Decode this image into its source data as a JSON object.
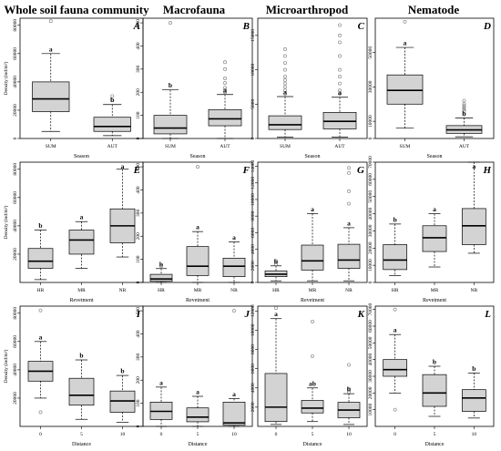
{
  "column_titles": [
    "Whole soil fauna community",
    "Macrofauna",
    "Microarthropod",
    "Nematode"
  ],
  "chart_data": [
    {
      "type": "box",
      "panel": "A",
      "xlabel": "Season",
      "ylabel": "Density (ind/m²)",
      "categories": [
        "SUM",
        "AUT"
      ],
      "ylim": [
        0,
        85000
      ],
      "yticks": [
        0,
        20000,
        40000,
        60000,
        80000
      ],
      "boxes": [
        {
          "whislo": 5000,
          "q1": 19000,
          "med": 28000,
          "q3": 40000,
          "whishi": 60000,
          "outliers": [
            83000
          ],
          "letter": "a"
        },
        {
          "whislo": 2000,
          "q1": 5000,
          "med": 8500,
          "q3": 15000,
          "whishi": 24000,
          "outliers": [
            27000,
            30000
          ],
          "letter": "b"
        }
      ]
    },
    {
      "type": "box",
      "panel": "B",
      "xlabel": "Season",
      "ylabel": "",
      "categories": [
        "SUM",
        "AUT"
      ],
      "ylim": [
        0,
        520
      ],
      "yticks": [
        0,
        100,
        200,
        300,
        400,
        500
      ],
      "boxes": [
        {
          "whislo": 0,
          "q1": 20,
          "med": 45,
          "q3": 100,
          "whishi": 210,
          "outliers": [
            500
          ],
          "letter": "b"
        },
        {
          "whislo": 0,
          "q1": 55,
          "med": 85,
          "q3": 125,
          "whishi": 190,
          "outliers": [
            200,
            210,
            220,
            240,
            260,
            300,
            330
          ],
          "letter": "a"
        }
      ]
    },
    {
      "type": "box",
      "panel": "C",
      "xlabel": "Season",
      "ylabel": "",
      "categories": [
        "SUM",
        "AUT"
      ],
      "ylim": [
        0,
        17500
      ],
      "yticks": [
        0,
        5000,
        10000,
        15000
      ],
      "boxes": [
        {
          "whislo": 200,
          "q1": 1300,
          "med": 2000,
          "q3": 3300,
          "whishi": 6100,
          "outliers": [
            6500,
            7000,
            7500,
            8000,
            8500,
            9000,
            10000,
            11000,
            12000,
            13000
          ],
          "letter": "a"
        },
        {
          "whislo": 200,
          "q1": 1400,
          "med": 2500,
          "q3": 3800,
          "whishi": 6000,
          "outliers": [
            6500,
            7000,
            8000,
            9000,
            10000,
            12000,
            14000,
            15000,
            16500
          ],
          "letter": "a"
        }
      ]
    },
    {
      "type": "box",
      "panel": "D",
      "xlabel": "Season",
      "ylabel": "",
      "categories": [
        "SUM",
        "AUT"
      ],
      "ylim": [
        0,
        70000
      ],
      "yticks": [
        0,
        10000,
        30000,
        50000
      ],
      "boxes": [
        {
          "whislo": 6000,
          "q1": 20000,
          "med": 28000,
          "q3": 37000,
          "whishi": 53000,
          "outliers": [
            68000
          ],
          "letter": "a"
        },
        {
          "whislo": 1000,
          "q1": 3000,
          "med": 5000,
          "q3": 7500,
          "whishi": 12000,
          "outliers": [
            14000,
            16000,
            17000,
            18000,
            19000,
            20000,
            22000
          ],
          "letter": "b"
        }
      ]
    },
    {
      "type": "box",
      "panel": "E",
      "xlabel": "Revetment",
      "ylabel": "Density (ind/m²)",
      "categories": [
        "HR",
        "MR",
        "NR"
      ],
      "ylim": [
        0,
        85000
      ],
      "yticks": [
        20000,
        40000,
        60000,
        80000
      ],
      "boxes": [
        {
          "whislo": 2000,
          "q1": 10000,
          "med": 15000,
          "q3": 24000,
          "whishi": 37000,
          "outliers": [],
          "letter": "b"
        },
        {
          "whislo": 10000,
          "q1": 20000,
          "med": 30000,
          "q3": 37000,
          "whishi": 43000,
          "outliers": [],
          "letter": "a"
        },
        {
          "whislo": 18000,
          "q1": 28000,
          "med": 40000,
          "q3": 52000,
          "whishi": 80000,
          "outliers": [],
          "letter": "a"
        }
      ]
    },
    {
      "type": "box",
      "panel": "F",
      "xlabel": "Revetment",
      "ylabel": "",
      "categories": [
        "HR",
        "MR",
        "NR"
      ],
      "ylim": [
        0,
        520
      ],
      "yticks": [
        0,
        100,
        200,
        300,
        400,
        500
      ],
      "boxes": [
        {
          "whislo": 0,
          "q1": 5,
          "med": 15,
          "q3": 35,
          "whishi": 60,
          "outliers": [
            70
          ],
          "letter": "b"
        },
        {
          "whislo": 0,
          "q1": 30,
          "med": 70,
          "q3": 155,
          "whishi": 220,
          "outliers": [
            500
          ],
          "letter": "a"
        },
        {
          "whislo": 0,
          "q1": 25,
          "med": 70,
          "q3": 105,
          "whishi": 175,
          "outliers": [],
          "letter": "a"
        }
      ]
    },
    {
      "type": "box",
      "panel": "G",
      "xlabel": "Revetment",
      "ylabel": "",
      "categories": [
        "HR",
        "MR",
        "NR"
      ],
      "ylim": [
        0,
        14500
      ],
      "yticks": [
        0,
        2000,
        4000,
        6000,
        8000,
        10000,
        12000,
        14000
      ],
      "boxes": [
        {
          "whislo": 200,
          "q1": 700,
          "med": 1000,
          "q3": 1400,
          "whishi": 2000,
          "outliers": [
            2200,
            2600
          ],
          "letter": "b"
        },
        {
          "whislo": 200,
          "q1": 1500,
          "med": 2600,
          "q3": 4500,
          "whishi": 8300,
          "outliers": [],
          "letter": "a"
        },
        {
          "whislo": 200,
          "q1": 1700,
          "med": 2700,
          "q3": 4600,
          "whishi": 6600,
          "outliers": [
            9500,
            11000,
            13200,
            13800
          ],
          "letter": "a"
        }
      ]
    },
    {
      "type": "box",
      "panel": "H",
      "xlabel": "Revetment",
      "ylabel": "",
      "categories": [
        "HR",
        "MR",
        "NR"
      ],
      "ylim": [
        0,
        70000
      ],
      "yticks": [
        0,
        10000,
        20000,
        30000,
        40000,
        50000,
        60000,
        70000
      ],
      "boxes": [
        {
          "whislo": 4000,
          "q1": 7500,
          "med": 13000,
          "q3": 22000,
          "whishi": 34000,
          "outliers": [],
          "letter": "b"
        },
        {
          "whislo": 9000,
          "q1": 18000,
          "med": 26000,
          "q3": 33000,
          "whishi": 40000,
          "outliers": [],
          "letter": "a"
        },
        {
          "whislo": 17000,
          "q1": 22000,
          "med": 33000,
          "q3": 43000,
          "whishi": 70000,
          "outliers": [],
          "letter": "a"
        }
      ]
    },
    {
      "type": "box",
      "panel": "I",
      "xlabel": "Distance",
      "ylabel": "Density (ind/m²)",
      "categories": [
        "0",
        "5",
        "10"
      ],
      "ylim": [
        0,
        85000
      ],
      "yticks": [
        20000,
        40000,
        60000,
        80000
      ],
      "boxes": [
        {
          "whislo": 20000,
          "q1": 32000,
          "med": 39000,
          "q3": 46000,
          "whishi": 60000,
          "outliers": [
            10000,
            82000
          ],
          "letter": "a"
        },
        {
          "whislo": 5000,
          "q1": 15000,
          "med": 22000,
          "q3": 34000,
          "whishi": 47000,
          "outliers": [],
          "letter": "b"
        },
        {
          "whislo": 3000,
          "q1": 10000,
          "med": 18000,
          "q3": 25000,
          "whishi": 36000,
          "outliers": [],
          "letter": "b"
        }
      ]
    },
    {
      "type": "box",
      "panel": "J",
      "xlabel": "Distance",
      "ylabel": "",
      "categories": [
        "0",
        "5",
        "10"
      ],
      "ylim": [
        0,
        520
      ],
      "yticks": [
        0,
        100,
        200,
        300,
        400,
        500
      ],
      "boxes": [
        {
          "whislo": 0,
          "q1": 30,
          "med": 65,
          "q3": 105,
          "whishi": 170,
          "outliers": [],
          "letter": "a"
        },
        {
          "whislo": 0,
          "q1": 20,
          "med": 40,
          "q3": 80,
          "whishi": 130,
          "outliers": [],
          "letter": "a"
        },
        {
          "whislo": 0,
          "q1": 5,
          "med": 15,
          "q3": 105,
          "whishi": 120,
          "outliers": [
            500
          ],
          "letter": "a"
        }
      ]
    },
    {
      "type": "box",
      "panel": "K",
      "xlabel": "Distance",
      "ylabel": "",
      "categories": [
        "0",
        "5",
        "10"
      ],
      "ylim": [
        0,
        12500
      ],
      "yticks": [
        2000,
        4000,
        6000,
        8000,
        10000,
        12000
      ],
      "boxes": [
        {
          "whislo": 200,
          "q1": 500,
          "med": 2000,
          "q3": 5500,
          "whishi": 11200,
          "outliers": [
            12300
          ],
          "letter": "a"
        },
        {
          "whislo": 500,
          "q1": 1400,
          "med": 1900,
          "q3": 2700,
          "whishi": 4000,
          "outliers": [
            7300,
            10900
          ],
          "letter": "ab"
        },
        {
          "whislo": 200,
          "q1": 900,
          "med": 1700,
          "q3": 2500,
          "whishi": 3400,
          "outliers": [
            3600,
            3900,
            6400
          ],
          "letter": "b"
        }
      ]
    },
    {
      "type": "box",
      "panel": "L",
      "xlabel": "Distance",
      "ylabel": "",
      "categories": [
        "0",
        "5",
        "10"
      ],
      "ylim": [
        0,
        72000
      ],
      "yticks": [
        10000,
        20000,
        30000,
        40000,
        50000,
        60000,
        70000
      ],
      "boxes": [
        {
          "whislo": 20000,
          "q1": 30000,
          "med": 34000,
          "q3": 40000,
          "whishi": 55000,
          "outliers": [
            10000,
            70000
          ],
          "letter": "a"
        },
        {
          "whislo": 6000,
          "q1": 12000,
          "med": 20000,
          "q3": 31000,
          "whishi": 36000,
          "outliers": [],
          "letter": "b"
        },
        {
          "whislo": 5000,
          "q1": 9000,
          "med": 17000,
          "q3": 22000,
          "whishi": 32000,
          "outliers": [],
          "letter": "b"
        }
      ]
    }
  ]
}
